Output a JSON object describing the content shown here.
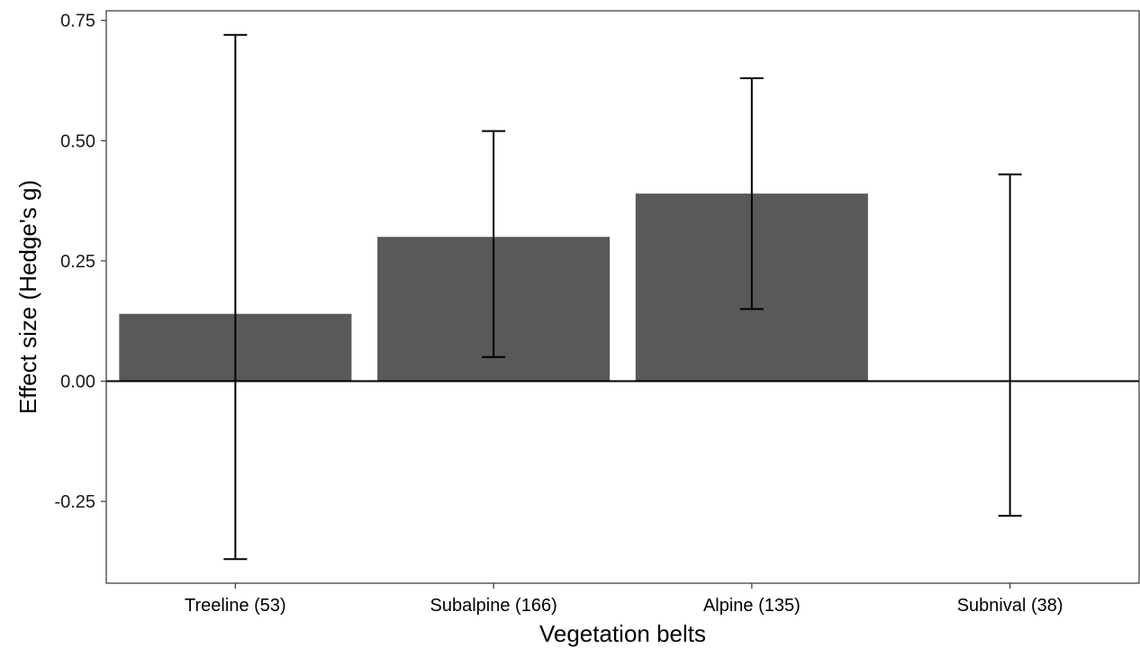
{
  "chart_data": {
    "type": "bar",
    "title": "",
    "xlabel": "Vegetation belts",
    "ylabel": "Effect size (Hedge's g)",
    "categories": [
      {
        "name": "Treeline",
        "count": "(53)"
      },
      {
        "name": "Subalpine",
        "count": "(166)"
      },
      {
        "name": "Alpine",
        "count": "(135)"
      },
      {
        "name": "Subnival",
        "count": "(38)"
      }
    ],
    "values": [
      0.14,
      0.3,
      0.39,
      0.0
    ],
    "error_low": [
      -0.37,
      0.05,
      0.15,
      -0.28
    ],
    "error_high": [
      0.72,
      0.52,
      0.63,
      0.43
    ],
    "ylim": [
      -0.42,
      0.77
    ],
    "yticks": [
      -0.25,
      0.0,
      0.25,
      0.5,
      0.75
    ],
    "ytick_labels": [
      "-0.25",
      "0.00",
      "0.25",
      "0.50",
      "0.75"
    ],
    "grid": false,
    "reference_line": 0,
    "bar_color": "#595959",
    "error_bar_color": "#000000"
  }
}
